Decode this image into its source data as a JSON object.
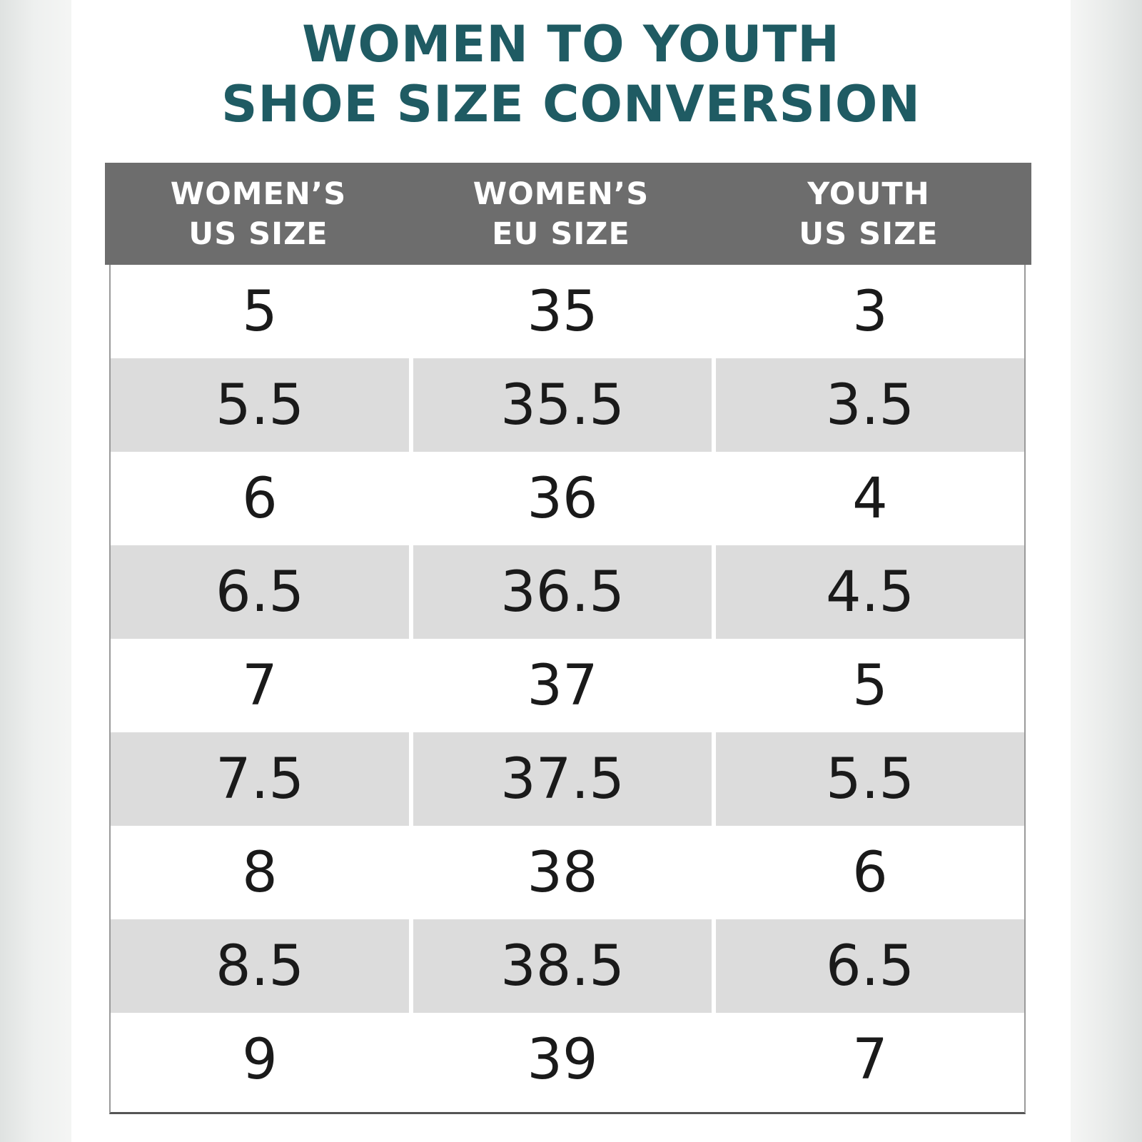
{
  "title": {
    "line1": "WOMEN TO YOUTH",
    "line2": "SHOE SIZE CONVERSION"
  },
  "colors": {
    "title": "#1f5b63",
    "header_bg": "#6d6d6d",
    "header_text": "#ffffff",
    "row_shade": "#dcdcdc",
    "cell_text": "#1a1a1a"
  },
  "table": {
    "headers": [
      {
        "line1": "WOMEN’S",
        "line2": "US SIZE"
      },
      {
        "line1": "WOMEN’S",
        "line2": "EU SIZE"
      },
      {
        "line1": "YOUTH",
        "line2": "US SIZE"
      }
    ],
    "rows": [
      [
        "5",
        "35",
        "3"
      ],
      [
        "5.5",
        "35.5",
        "3.5"
      ],
      [
        "6",
        "36",
        "4"
      ],
      [
        "6.5",
        "36.5",
        "4.5"
      ],
      [
        "7",
        "37",
        "5"
      ],
      [
        "7.5",
        "37.5",
        "5.5"
      ],
      [
        "8",
        "38",
        "6"
      ],
      [
        "8.5",
        "38.5",
        "6.5"
      ],
      [
        "9",
        "39",
        "7"
      ]
    ]
  }
}
